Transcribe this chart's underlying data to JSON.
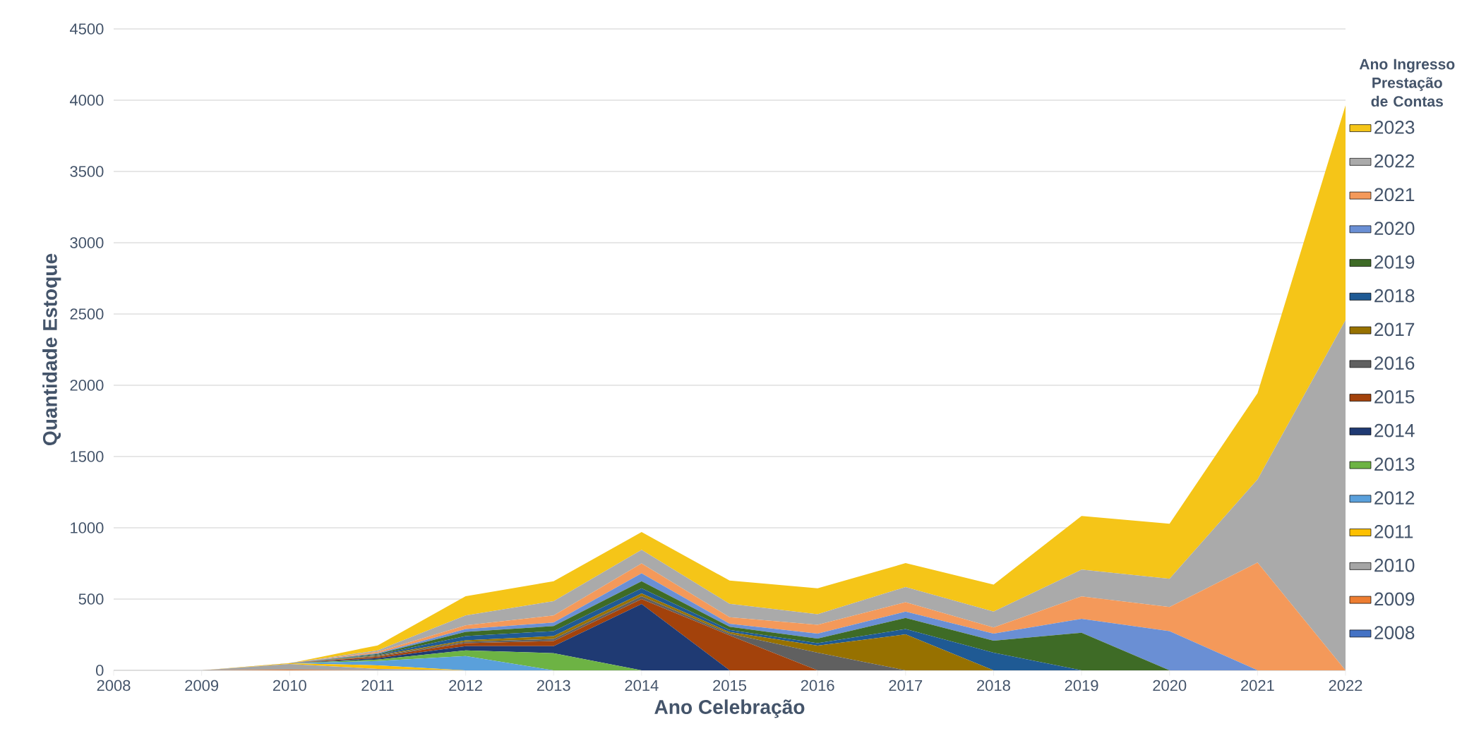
{
  "chart_data": {
    "type": "area",
    "stacked": true,
    "xlabel": "Ano Celebração",
    "ylabel": "Quantidade Estoque",
    "legend_title": "Ano Ingresso Prestação de Contas",
    "x": [
      2008,
      2009,
      2010,
      2011,
      2012,
      2013,
      2014,
      2015,
      2016,
      2017,
      2018,
      2019,
      2020,
      2021,
      2022
    ],
    "xlim": [
      2008,
      2022
    ],
    "xticks": [
      2008,
      2009,
      2010,
      2011,
      2012,
      2013,
      2014,
      2015,
      2016,
      2017,
      2018,
      2019,
      2020,
      2021,
      2022
    ],
    "ylim": [
      0,
      4500
    ],
    "yticks": [
      0,
      500,
      1000,
      1500,
      2000,
      2500,
      3000,
      3500,
      4000,
      4500
    ],
    "grid": "y",
    "legend": "right",
    "series": [
      {
        "name": "2008",
        "color": "#4472c4",
        "values": [
          null,
          null,
          null,
          null,
          null,
          null,
          null,
          null,
          null,
          null,
          null,
          null,
          null,
          null,
          null
        ]
      },
      {
        "name": "2009",
        "color": "#ed7d31",
        "values": [
          0,
          0,
          5,
          0,
          0,
          0,
          0,
          0,
          0,
          0,
          0,
          0,
          0,
          0,
          0
        ]
      },
      {
        "name": "2010",
        "color": "#a5a5a5",
        "values": [
          0,
          0,
          40,
          10,
          0,
          0,
          0,
          0,
          0,
          0,
          0,
          0,
          0,
          0,
          0
        ]
      },
      {
        "name": "2011",
        "color": "#fec000",
        "values": [
          0,
          0,
          5,
          25,
          0,
          0,
          0,
          0,
          0,
          0,
          0,
          0,
          0,
          0,
          0
        ]
      },
      {
        "name": "2012",
        "color": "#5aa0db",
        "values": [
          0,
          0,
          0,
          30,
          100,
          0,
          0,
          0,
          0,
          0,
          0,
          0,
          0,
          0,
          0
        ]
      },
      {
        "name": "2013",
        "color": "#6db344",
        "values": [
          0,
          0,
          0,
          10,
          40,
          120,
          0,
          0,
          0,
          0,
          0,
          0,
          0,
          0,
          0
        ]
      },
      {
        "name": "2014",
        "color": "#1f3a73",
        "values": [
          0,
          0,
          0,
          10,
          30,
          50,
          465,
          0,
          0,
          0,
          0,
          0,
          0,
          0,
          0
        ]
      },
      {
        "name": "2015",
        "color": "#a3420b",
        "values": [
          0,
          0,
          0,
          10,
          20,
          35,
          35,
          245,
          0,
          0,
          0,
          0,
          0,
          0,
          0
        ]
      },
      {
        "name": "2016",
        "color": "#606060",
        "values": [
          0,
          0,
          0,
          5,
          10,
          15,
          20,
          12,
          124,
          0,
          0,
          0,
          0,
          0,
          0
        ]
      },
      {
        "name": "2017",
        "color": "#977100",
        "values": [
          0,
          0,
          0,
          5,
          10,
          20,
          20,
          11,
          49,
          252,
          0,
          0,
          0,
          0,
          0
        ]
      },
      {
        "name": "2018",
        "color": "#1f5a94",
        "values": [
          0,
          0,
          0,
          5,
          30,
          35,
          35,
          15,
          17,
          38,
          124,
          0,
          0,
          0,
          0
        ]
      },
      {
        "name": "2019",
        "color": "#3e6b26",
        "values": [
          0,
          0,
          0,
          5,
          30,
          35,
          50,
          22,
          33,
          77,
          84,
          264,
          0,
          0,
          0
        ]
      },
      {
        "name": "2020",
        "color": "#6a8fd4",
        "values": [
          0,
          0,
          0,
          5,
          20,
          25,
          55,
          22,
          34,
          45,
          49,
          97,
          275,
          0,
          0
        ]
      },
      {
        "name": "2021",
        "color": "#f4995a",
        "values": [
          0,
          0,
          0,
          10,
          25,
          50,
          70,
          45,
          62,
          66,
          44,
          158,
          169,
          756,
          0
        ]
      },
      {
        "name": "2022",
        "color": "#aaaaaa",
        "values": [
          0,
          0,
          0,
          10,
          70,
          100,
          95,
          95,
          75,
          106,
          111,
          187,
          198,
          583,
          2456
        ]
      },
      {
        "name": "2023",
        "color": "#f5c518",
        "values": [
          0,
          0,
          0,
          35,
          135,
          140,
          125,
          163,
          181,
          168,
          190,
          377,
          386,
          605,
          1508
        ]
      }
    ]
  }
}
